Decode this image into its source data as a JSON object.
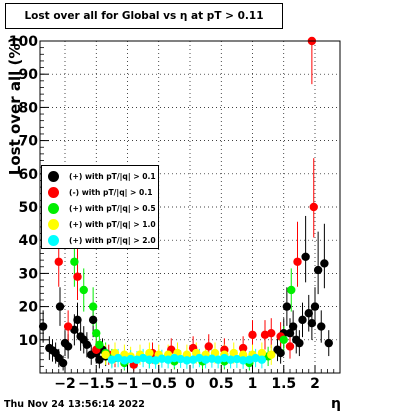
{
  "chart_data": {
    "type": "scatter",
    "title": "Lost over all for Global vs   η at pT > 0.11",
    "xlabel": "η",
    "ylabel": "Lost over all (%)",
    "xlim": [
      -2.4,
      2.4
    ],
    "ylim": [
      0,
      100
    ],
    "x_ticks": [
      "−2",
      "−1.5",
      "−1",
      "−0.5",
      "0",
      "0.5",
      "1",
      "1.5",
      "2"
    ],
    "y_ticks": [
      "10",
      "20",
      "30",
      "40",
      "50",
      "60",
      "70",
      "80",
      "90",
      "100"
    ],
    "grid": true,
    "legend_position": "left",
    "series": [
      {
        "name": "(+) with pT/|q| > 0.1",
        "color": "#000000",
        "points": [
          [
            -2.35,
            14
          ],
          [
            -2.25,
            7.5
          ],
          [
            -2.2,
            6.8
          ],
          [
            -2.15,
            6
          ],
          [
            -2.1,
            4.5
          ],
          [
            -2.08,
            20
          ],
          [
            -2.03,
            3
          ],
          [
            -2.0,
            9
          ],
          [
            -1.95,
            8
          ],
          [
            -1.85,
            13
          ],
          [
            -1.8,
            16
          ],
          [
            -1.75,
            11
          ],
          [
            -1.7,
            10
          ],
          [
            -1.65,
            8.5
          ],
          [
            -1.58,
            5.5
          ],
          [
            -1.55,
            16
          ],
          [
            -1.5,
            6
          ],
          [
            -1.45,
            4
          ],
          [
            -1.4,
            7
          ],
          [
            -1.35,
            5
          ],
          [
            1.4,
            7
          ],
          [
            1.45,
            6
          ],
          [
            1.5,
            12
          ],
          [
            1.55,
            20
          ],
          [
            1.6,
            12
          ],
          [
            1.65,
            14
          ],
          [
            1.7,
            10
          ],
          [
            1.75,
            9
          ],
          [
            1.8,
            16
          ],
          [
            1.85,
            35
          ],
          [
            1.9,
            18
          ],
          [
            1.95,
            15
          ],
          [
            2.0,
            20
          ],
          [
            2.05,
            31
          ],
          [
            2.1,
            14
          ],
          [
            2.15,
            33
          ],
          [
            2.22,
            9
          ]
        ]
      },
      {
        "name": "(-) with pT/|q| > 0.1",
        "color": "#ff0000",
        "points": [
          [
            -2.1,
            33.5
          ],
          [
            -1.95,
            14
          ],
          [
            -1.8,
            29
          ],
          [
            -1.5,
            7
          ],
          [
            -1.3,
            5.5
          ],
          [
            -1.2,
            4.5
          ],
          [
            -0.9,
            2.5
          ],
          [
            -0.6,
            6
          ],
          [
            -0.3,
            7
          ],
          [
            0.05,
            7.5
          ],
          [
            0.3,
            8
          ],
          [
            0.55,
            7
          ],
          [
            0.85,
            7.5
          ],
          [
            1.0,
            11.5
          ],
          [
            1.2,
            11.5
          ],
          [
            1.3,
            12
          ],
          [
            1.45,
            11
          ],
          [
            1.6,
            8
          ],
          [
            1.72,
            33.5
          ],
          [
            1.95,
            100
          ],
          [
            1.98,
            50
          ]
        ]
      },
      {
        "name": "(+) with pT/|q| > 0.5",
        "color": "#00ee00",
        "points": [
          [
            -1.85,
            33.5
          ],
          [
            -1.7,
            25
          ],
          [
            -1.55,
            20
          ],
          [
            -1.5,
            12
          ],
          [
            -1.45,
            8.5
          ],
          [
            -1.35,
            6
          ],
          [
            -1.25,
            4.5
          ],
          [
            -1.05,
            3
          ],
          [
            -0.65,
            4
          ],
          [
            -0.25,
            3.5
          ],
          [
            0.2,
            3.5
          ],
          [
            0.55,
            3.5
          ],
          [
            0.95,
            3
          ],
          [
            1.25,
            5
          ],
          [
            1.5,
            10
          ],
          [
            1.62,
            25
          ]
        ]
      },
      {
        "name": "(+) with pT/|q| > 1.0",
        "color": "#ffff00",
        "points": [
          [
            -1.35,
            5.5
          ],
          [
            -1.2,
            6
          ],
          [
            -1.05,
            5.5
          ],
          [
            -0.95,
            5
          ],
          [
            -0.8,
            5.5
          ],
          [
            -0.65,
            6
          ],
          [
            -0.5,
            5.5
          ],
          [
            -0.35,
            5.5
          ],
          [
            -0.2,
            6
          ],
          [
            -0.05,
            5.5
          ],
          [
            0.1,
            6
          ],
          [
            0.25,
            5.5
          ],
          [
            0.4,
            6
          ],
          [
            0.55,
            5.5
          ],
          [
            0.7,
            6
          ],
          [
            0.85,
            5.5
          ],
          [
            1.0,
            5.5
          ],
          [
            1.15,
            6
          ],
          [
            1.3,
            5.5
          ]
        ]
      },
      {
        "name": "(+) with pT/|q| > 2.0",
        "color": "#00ffff",
        "points": [
          [
            -1.25,
            4
          ],
          [
            -1.15,
            4.5
          ],
          [
            -1.05,
            3.8
          ],
          [
            -0.95,
            4.2
          ],
          [
            -0.85,
            4
          ],
          [
            -0.75,
            4.5
          ],
          [
            -0.65,
            4
          ],
          [
            -0.55,
            3.8
          ],
          [
            -0.45,
            4.3
          ],
          [
            -0.35,
            4
          ],
          [
            -0.25,
            4.5
          ],
          [
            -0.15,
            4.2
          ],
          [
            -0.05,
            3.8
          ],
          [
            0.05,
            4
          ],
          [
            0.15,
            4.5
          ],
          [
            0.25,
            4
          ],
          [
            0.35,
            4.3
          ],
          [
            0.45,
            4
          ],
          [
            0.55,
            4.5
          ],
          [
            0.65,
            4
          ],
          [
            0.75,
            4.2
          ],
          [
            0.85,
            3.8
          ],
          [
            0.95,
            4
          ],
          [
            1.05,
            4.5
          ],
          [
            1.15,
            4
          ]
        ]
      }
    ]
  },
  "footer": {
    "timestamp": "Thu Nov 24 13:56:14 2022"
  }
}
